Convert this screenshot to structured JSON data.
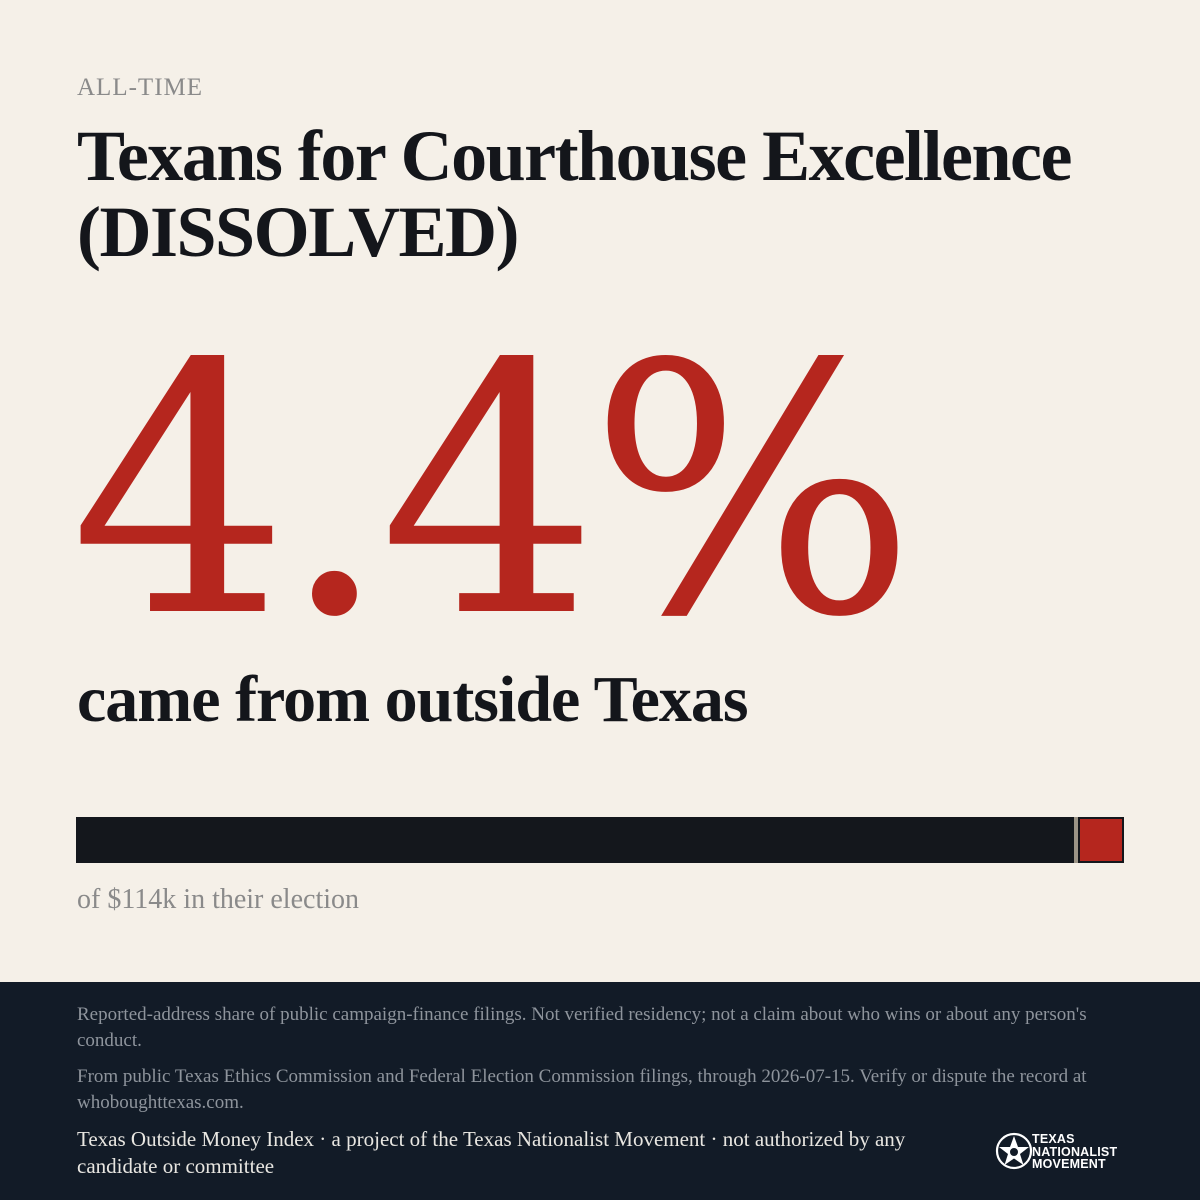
{
  "header": {
    "kicker": "ALL-TIME",
    "title": "Texans for Courthouse Excellence (DISSOLVED)"
  },
  "stat": {
    "percent_label": "4.4%",
    "outside_share_fraction": 0.044,
    "subline": "came from outside Texas"
  },
  "bar": {
    "caption": "of $114k in their election",
    "colors": {
      "inside": "#14171c",
      "outside": "#b5261e"
    }
  },
  "footer": {
    "note1": "Reported-address share of public campaign-finance filings. Not verified residency; not a claim about who wins or about any person's conduct.",
    "note2": "From public Texas Ethics Commission and Federal Election Commission filings, through 2026-07-15. Verify or dispute the record at whoboughttexas.com.",
    "credit": "Texas Outside Money Index · a project of the Texas Nationalist Movement · not authorized by any candidate or committee",
    "logo": {
      "icon": "star-seal-icon",
      "lines": [
        "TEXAS",
        "NATIONALIST",
        "MOVEMENT"
      ]
    }
  },
  "colors": {
    "background": "#f5f0e8",
    "accent": "#b5261e",
    "ink": "#14161b",
    "footer_bg": "#121b27"
  }
}
